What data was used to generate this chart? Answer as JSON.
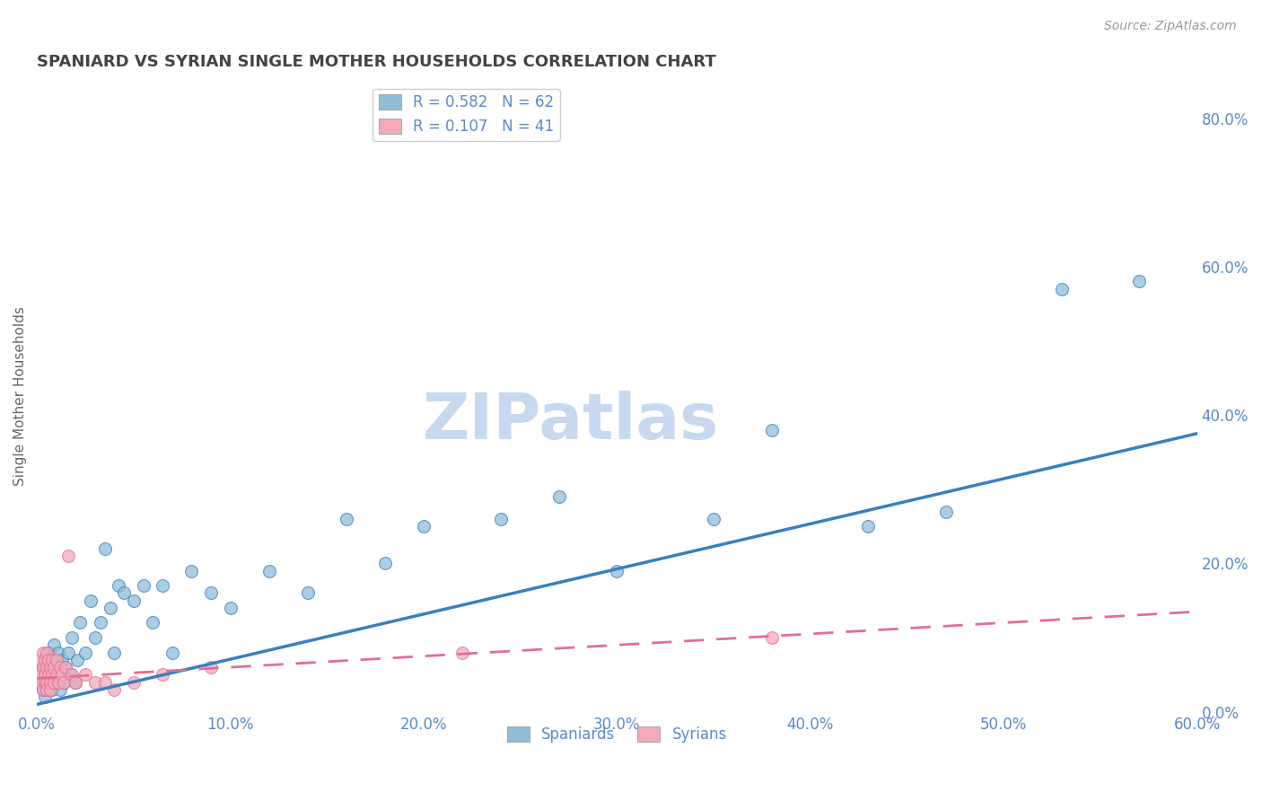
{
  "title": "SPANIARD VS SYRIAN SINGLE MOTHER HOUSEHOLDS CORRELATION CHART",
  "source_text": "Source: ZipAtlas.com",
  "ylabel": "Single Mother Households",
  "xlabel": "",
  "watermark": "ZIPatlas",
  "R_spaniard": 0.582,
  "N_spaniard": 62,
  "R_syrian": 0.107,
  "N_syrian": 41,
  "xlim": [
    0.0,
    0.6
  ],
  "ylim": [
    0.0,
    0.85
  ],
  "color_spaniard": "#92BDD8",
  "color_syrian": "#F2AABB",
  "color_line_spaniard": "#3A7FBF",
  "color_line_syrian": "#E07090",
  "background_color": "#FFFFFF",
  "grid_color": "#D0D8E8",
  "title_color": "#444444",
  "axis_label_color": "#666666",
  "tick_label_color": "#5B8AC5",
  "watermark_color": "#C8D8EE",
  "sp_x": [
    0.002,
    0.003,
    0.003,
    0.004,
    0.004,
    0.005,
    0.005,
    0.005,
    0.005,
    0.006,
    0.006,
    0.007,
    0.007,
    0.008,
    0.008,
    0.009,
    0.009,
    0.01,
    0.01,
    0.011,
    0.012,
    0.012,
    0.013,
    0.014,
    0.015,
    0.016,
    0.017,
    0.018,
    0.02,
    0.021,
    0.022,
    0.025,
    0.028,
    0.03,
    0.033,
    0.035,
    0.038,
    0.04,
    0.042,
    0.045,
    0.05,
    0.055,
    0.06,
    0.065,
    0.07,
    0.08,
    0.09,
    0.1,
    0.12,
    0.14,
    0.16,
    0.18,
    0.2,
    0.24,
    0.27,
    0.3,
    0.35,
    0.38,
    0.43,
    0.47,
    0.53,
    0.57
  ],
  "sp_y": [
    0.04,
    0.06,
    0.03,
    0.05,
    0.02,
    0.07,
    0.04,
    0.03,
    0.06,
    0.05,
    0.08,
    0.04,
    0.06,
    0.03,
    0.07,
    0.05,
    0.09,
    0.04,
    0.06,
    0.08,
    0.05,
    0.03,
    0.07,
    0.04,
    0.06,
    0.08,
    0.05,
    0.1,
    0.04,
    0.07,
    0.12,
    0.08,
    0.15,
    0.1,
    0.12,
    0.22,
    0.14,
    0.08,
    0.17,
    0.16,
    0.15,
    0.17,
    0.12,
    0.17,
    0.08,
    0.19,
    0.16,
    0.14,
    0.19,
    0.16,
    0.26,
    0.2,
    0.25,
    0.26,
    0.29,
    0.19,
    0.26,
    0.38,
    0.25,
    0.27,
    0.57,
    0.58
  ],
  "sy_x": [
    0.001,
    0.002,
    0.002,
    0.003,
    0.003,
    0.003,
    0.004,
    0.004,
    0.004,
    0.005,
    0.005,
    0.005,
    0.005,
    0.006,
    0.006,
    0.007,
    0.007,
    0.007,
    0.008,
    0.008,
    0.009,
    0.009,
    0.01,
    0.01,
    0.011,
    0.012,
    0.013,
    0.014,
    0.015,
    0.016,
    0.018,
    0.02,
    0.025,
    0.03,
    0.035,
    0.04,
    0.05,
    0.065,
    0.09,
    0.22,
    0.38
  ],
  "sy_y": [
    0.05,
    0.04,
    0.07,
    0.06,
    0.03,
    0.08,
    0.05,
    0.04,
    0.07,
    0.06,
    0.04,
    0.03,
    0.08,
    0.05,
    0.07,
    0.04,
    0.06,
    0.03,
    0.05,
    0.07,
    0.04,
    0.06,
    0.05,
    0.07,
    0.04,
    0.06,
    0.05,
    0.04,
    0.06,
    0.21,
    0.05,
    0.04,
    0.05,
    0.04,
    0.04,
    0.03,
    0.04,
    0.05,
    0.06,
    0.08,
    0.1
  ],
  "line_sp_x0": 0.0,
  "line_sp_y0": 0.01,
  "line_sp_x1": 0.6,
  "line_sp_y1": 0.375,
  "line_sy_x0": 0.0,
  "line_sy_y0": 0.045,
  "line_sy_x1": 0.6,
  "line_sy_y1": 0.135,
  "figsize": [
    14.06,
    8.92
  ],
  "dpi": 100
}
